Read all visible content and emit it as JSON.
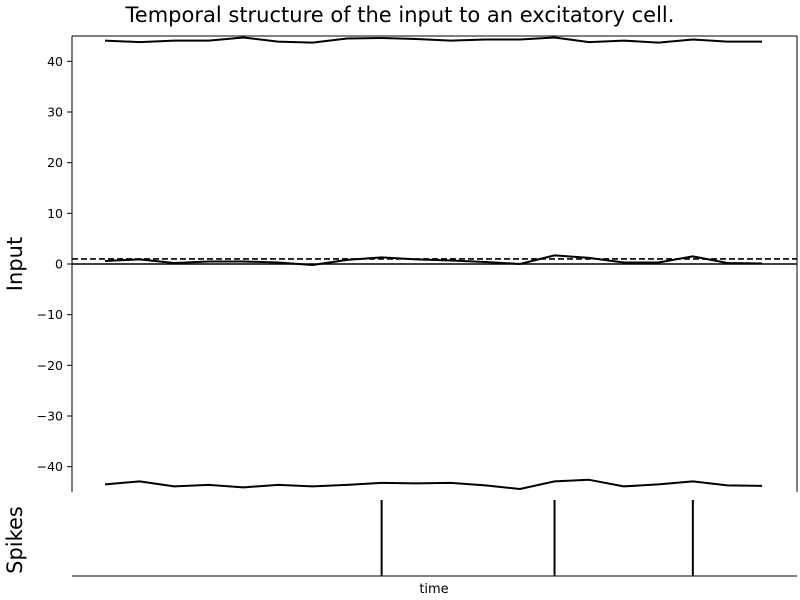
{
  "chart_data": [
    {
      "type": "line",
      "title": "Temporal structure of the input to an excitatory cell.",
      "ylabel": "Input",
      "xlabel": "",
      "ylim": [
        -45,
        45
      ],
      "yticks": [
        40,
        30,
        20,
        10,
        0,
        -10,
        -20,
        -30,
        -40
      ],
      "ytick_labels": [
        "40",
        "30",
        "20",
        "10",
        "0",
        "−10",
        "−20",
        "−30",
        "−40"
      ],
      "x": [
        0,
        1,
        2,
        3,
        4,
        5,
        6,
        7,
        8,
        9,
        10,
        11,
        12,
        13,
        14,
        15,
        16,
        17,
        18,
        19
      ],
      "series": [
        {
          "values": [
            44.1,
            43.8,
            44.1,
            44.1,
            44.7,
            43.9,
            43.7,
            44.5,
            44.6,
            44.4,
            44.1,
            44.3,
            44.3,
            44.7,
            43.8,
            44.1,
            43.7,
            44.3,
            43.9,
            43.9
          ]
        },
        {
          "values": [
            0.6,
            0.9,
            0.2,
            0.5,
            0.5,
            0.3,
            -0.2,
            0.8,
            1.3,
            0.9,
            0.7,
            0.4,
            0.0,
            1.7,
            1.2,
            0.3,
            0.3,
            1.5,
            0.2,
            0.1
          ]
        },
        {
          "values": [
            -43.5,
            -42.9,
            -43.9,
            -43.6,
            -44.1,
            -43.6,
            -43.9,
            -43.6,
            -43.2,
            -43.3,
            -43.2,
            -43.7,
            -44.4,
            -42.9,
            -42.6,
            -43.9,
            -43.5,
            -42.9,
            -43.7,
            -43.8
          ]
        }
      ],
      "reference_lines": [
        {
          "y": 0,
          "style": "solid"
        },
        {
          "y": 1,
          "style": "dashed"
        }
      ]
    },
    {
      "type": "spike_raster",
      "ylabel": "Spikes",
      "xlabel": "time",
      "spike_times": [
        8,
        13,
        17
      ]
    }
  ]
}
